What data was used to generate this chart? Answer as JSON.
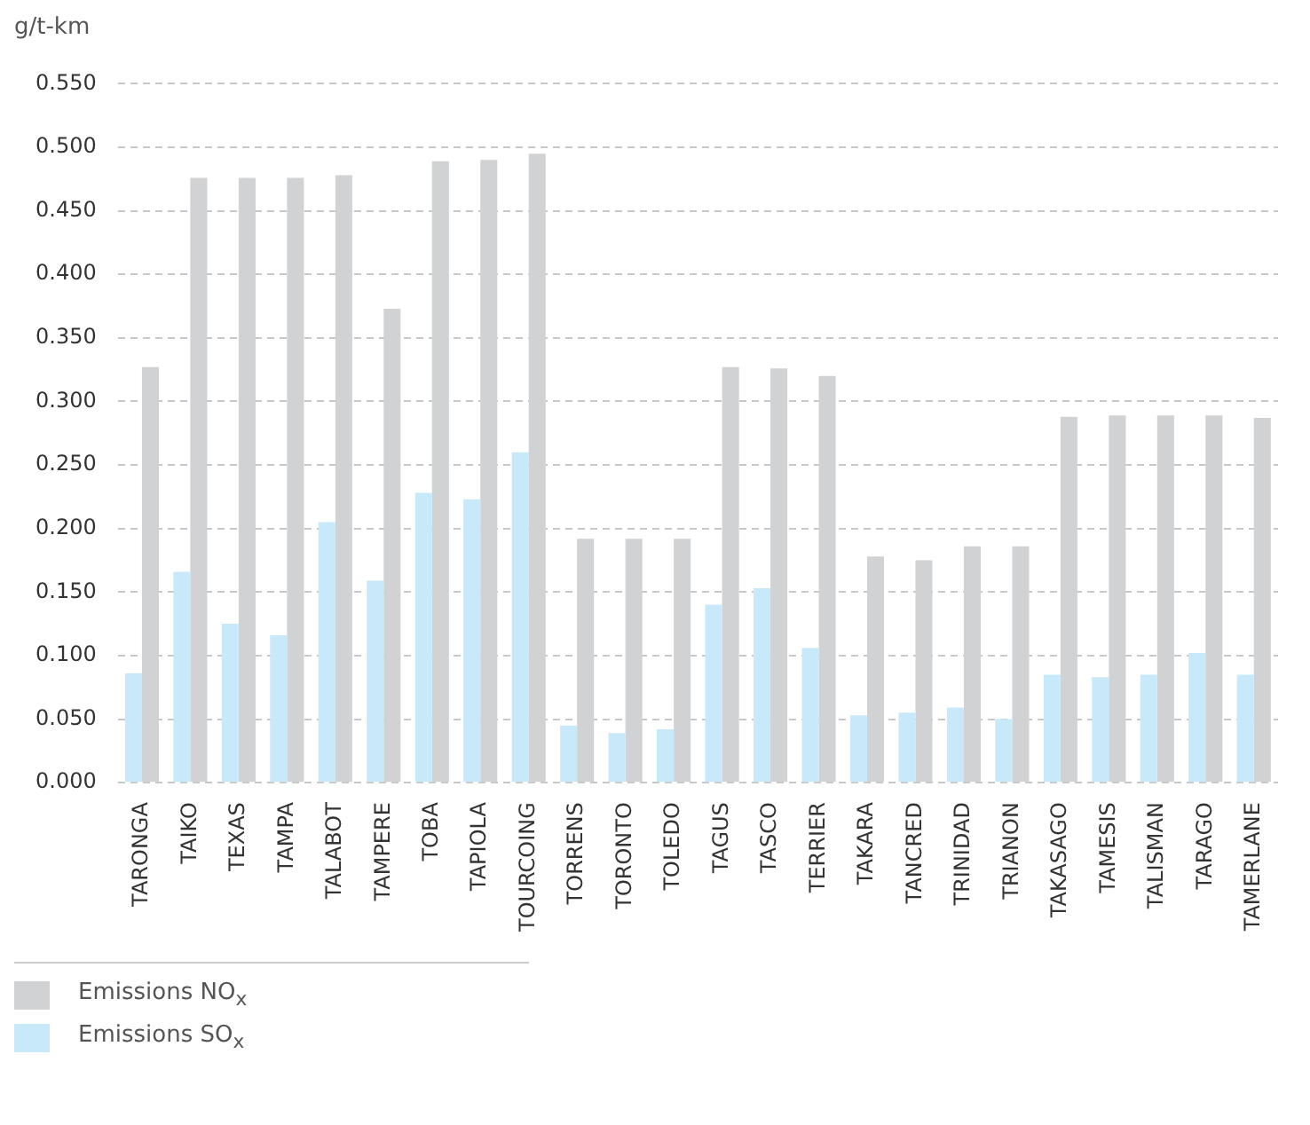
{
  "chart_data": {
    "type": "bar",
    "ylabel": "g/t-km",
    "categories": [
      "TARONGA",
      "TAIKO",
      "TEXAS",
      "TAMPA",
      "TALABOT",
      "TAMPERE",
      "TOBA",
      "TAPIOLA",
      "TOURCOING",
      "TORRENS",
      "TORONTO",
      "TOLEDO",
      "TAGUS",
      "TASCO",
      "TERRIER",
      "TAKARA",
      "TANCRED",
      "TRINIDAD",
      "TRIANON",
      "TAKASAGO",
      "TAMESIS",
      "TALISMAN",
      "TARAGO",
      "TAMERLANE"
    ],
    "series": [
      {
        "name": "Emissions NO$_{x}$",
        "color": "#d1d2d4",
        "values": [
          0.327,
          0.476,
          0.476,
          0.476,
          0.478,
          0.373,
          0.489,
          0.49,
          0.495,
          0.192,
          0.192,
          0.192,
          0.327,
          0.326,
          0.32,
          0.178,
          0.175,
          0.186,
          0.186,
          0.288,
          0.289,
          0.289,
          0.289,
          0.287
        ]
      },
      {
        "name": "Emissions SO$_{x}$",
        "color": "#c7e9f9",
        "values": [
          0.086,
          0.166,
          0.125,
          0.116,
          0.205,
          0.159,
          0.228,
          0.223,
          0.26,
          0.045,
          0.039,
          0.042,
          0.14,
          0.153,
          0.106,
          0.053,
          0.055,
          0.059,
          0.05,
          0.085,
          0.083,
          0.085,
          0.102,
          0.085
        ]
      }
    ],
    "ylim": [
      0,
      0.55
    ],
    "yticks": [
      {
        "value": 0,
        "label": "0.000"
      },
      {
        "value": 0.05,
        "label": "0.050"
      },
      {
        "value": 0.1,
        "label": "0.100"
      },
      {
        "value": 0.15,
        "label": "0.150"
      },
      {
        "value": 0.2,
        "label": "0.200"
      },
      {
        "value": 0.25,
        "label": "0.250"
      },
      {
        "value": 0.3,
        "label": "0.300"
      },
      {
        "value": 0.35,
        "label": "0.350"
      },
      {
        "value": 0.4,
        "label": "0.400"
      },
      {
        "value": 0.45,
        "label": "0.450"
      },
      {
        "value": 0.5,
        "label": "0.500"
      },
      {
        "value": 0.55,
        "label": "0.550"
      }
    ],
    "grid": "y",
    "legend": "bottom"
  }
}
